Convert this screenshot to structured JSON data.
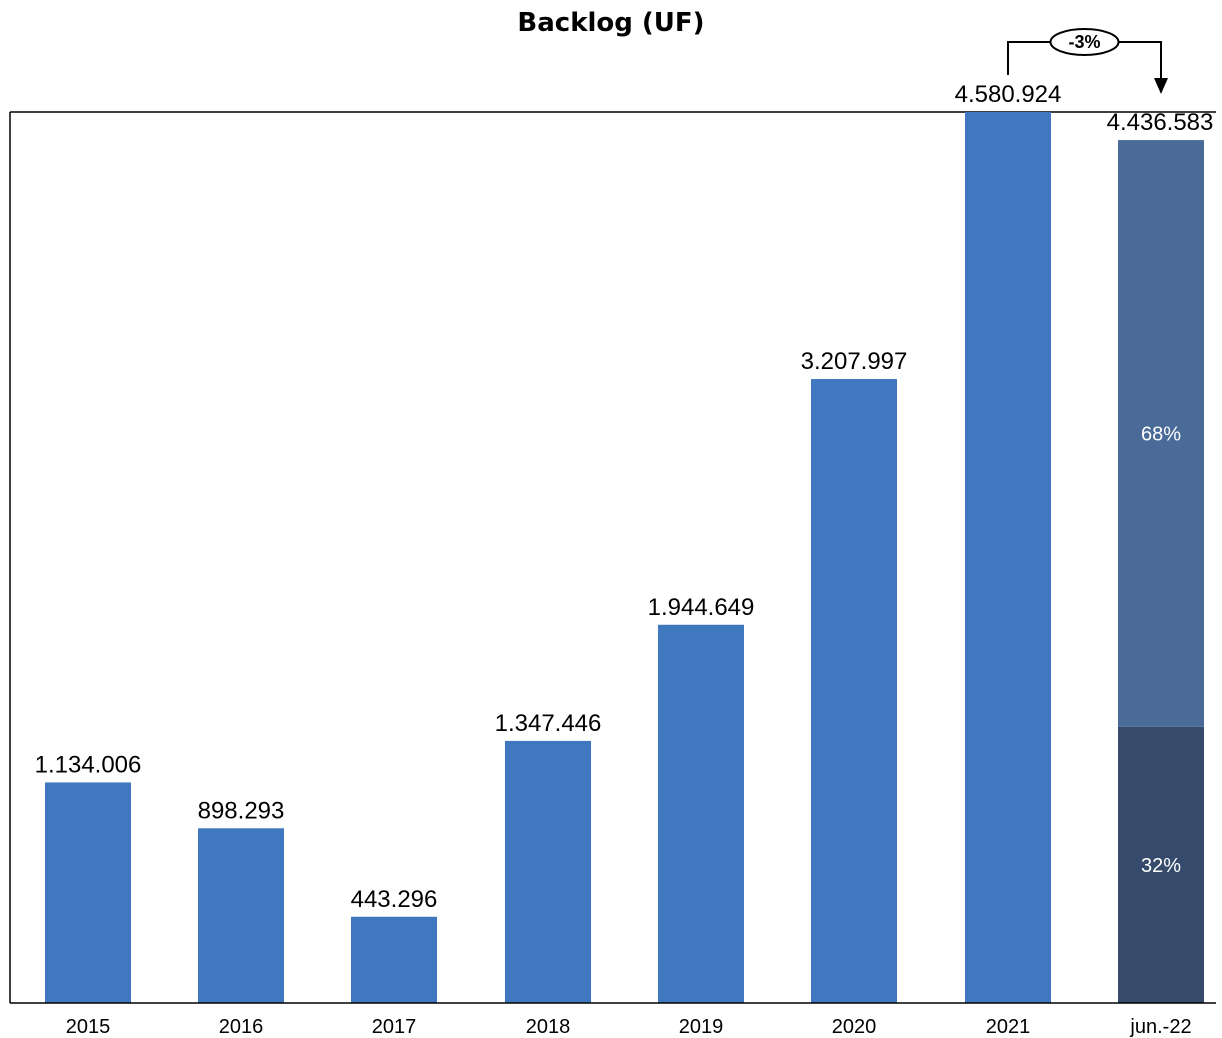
{
  "chart_data": {
    "type": "bar",
    "title": "Backlog (UF)",
    "xlabel": "",
    "ylabel": "",
    "ylim": [
      0,
      4580924
    ],
    "grid": false,
    "categories": [
      "2015",
      "2016",
      "2017",
      "2018",
      "2019",
      "2020",
      "2021",
      "jun.-22"
    ],
    "values": [
      1134006,
      898293,
      443296,
      1347446,
      1944649,
      3207997,
      4580924,
      4436583
    ],
    "value_labels": [
      "1.134.006",
      "898.293",
      "443.296",
      "1.347.446",
      "1.944.649",
      "3.207.997",
      "4.580.924",
      "4.436.583"
    ],
    "stacked_last": {
      "category": "jun.-22",
      "segments": [
        {
          "share": 0.32,
          "label": "32%",
          "color": "#364b6b"
        },
        {
          "share": 0.68,
          "label": "68%",
          "color": "#4a6a98"
        }
      ]
    },
    "change_annotation": {
      "from": "2021",
      "to": "jun.-22",
      "label": "-3%"
    },
    "colors": {
      "bar": "#3f78bf",
      "axis": "#000000"
    }
  }
}
